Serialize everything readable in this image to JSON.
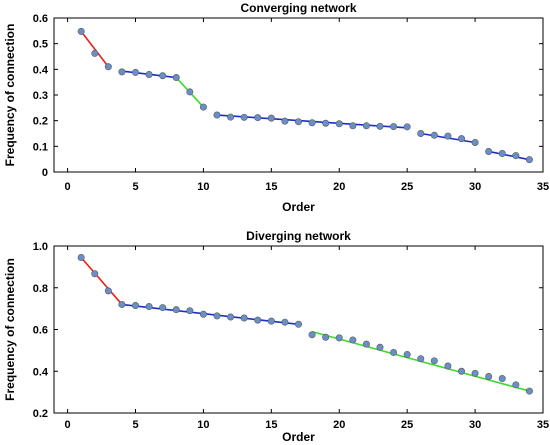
{
  "chart_data": [
    {
      "type": "scatter",
      "title": "Converging network",
      "xlabel": "Order",
      "ylabel": "Frequency of connection",
      "xlim": [
        -1,
        35
      ],
      "ylim": [
        0,
        0.6
      ],
      "xticks": [
        0,
        5,
        10,
        15,
        20,
        25,
        30,
        35
      ],
      "yticks": [
        0,
        0.1,
        0.2,
        0.3,
        0.4,
        0.5,
        0.6
      ],
      "ytick_labels": [
        "0",
        "0.1",
        "0.2",
        "0.3",
        "0.4",
        "0.5",
        "0.6"
      ],
      "point_color": "#6a8fc8",
      "points": [
        {
          "x": 1,
          "y": 0.548
        },
        {
          "x": 2,
          "y": 0.462
        },
        {
          "x": 3,
          "y": 0.41
        },
        {
          "x": 4,
          "y": 0.39
        },
        {
          "x": 5,
          "y": 0.388
        },
        {
          "x": 6,
          "y": 0.38
        },
        {
          "x": 7,
          "y": 0.375
        },
        {
          "x": 8,
          "y": 0.368
        },
        {
          "x": 9,
          "y": 0.312
        },
        {
          "x": 10,
          "y": 0.253
        },
        {
          "x": 11,
          "y": 0.222
        },
        {
          "x": 12,
          "y": 0.214
        },
        {
          "x": 13,
          "y": 0.213
        },
        {
          "x": 14,
          "y": 0.212
        },
        {
          "x": 15,
          "y": 0.21
        },
        {
          "x": 16,
          "y": 0.198
        },
        {
          "x": 17,
          "y": 0.196
        },
        {
          "x": 18,
          "y": 0.192
        },
        {
          "x": 19,
          "y": 0.19
        },
        {
          "x": 20,
          "y": 0.188
        },
        {
          "x": 21,
          "y": 0.18
        },
        {
          "x": 22,
          "y": 0.18
        },
        {
          "x": 23,
          "y": 0.178
        },
        {
          "x": 24,
          "y": 0.177
        },
        {
          "x": 25,
          "y": 0.176
        },
        {
          "x": 26,
          "y": 0.15
        },
        {
          "x": 27,
          "y": 0.143
        },
        {
          "x": 28,
          "y": 0.14
        },
        {
          "x": 29,
          "y": 0.13
        },
        {
          "x": 30,
          "y": 0.115
        },
        {
          "x": 31,
          "y": 0.08
        },
        {
          "x": 32,
          "y": 0.072
        },
        {
          "x": 33,
          "y": 0.064
        },
        {
          "x": 34,
          "y": 0.048
        }
      ],
      "fit_lines": [
        {
          "color": "#e8221a",
          "x": [
            1,
            3
          ],
          "y": [
            0.548,
            0.41
          ]
        },
        {
          "color": "#1a2ec8",
          "x": [
            4,
            8
          ],
          "y": [
            0.393,
            0.368
          ]
        },
        {
          "color": "#3adc2a",
          "x": [
            8,
            10
          ],
          "y": [
            0.368,
            0.253
          ]
        },
        {
          "color": "#1a2ec8",
          "x": [
            11,
            25
          ],
          "y": [
            0.222,
            0.172
          ]
        },
        {
          "color": "#1a2ec8",
          "x": [
            26,
            30
          ],
          "y": [
            0.15,
            0.115
          ]
        },
        {
          "color": "#1a2ec8",
          "x": [
            31,
            34
          ],
          "y": [
            0.08,
            0.048
          ]
        }
      ]
    },
    {
      "type": "scatter",
      "title": "Diverging network",
      "xlabel": "Order",
      "ylabel": "Frequency of connection",
      "xlim": [
        -1,
        35
      ],
      "ylim": [
        0.2,
        1.0
      ],
      "xticks": [
        0,
        5,
        10,
        15,
        20,
        25,
        30,
        35
      ],
      "yticks": [
        0.2,
        0.4,
        0.6,
        0.8,
        1.0
      ],
      "ytick_labels": [
        "0.2",
        "0.4",
        "0.6",
        "0.8",
        "1.0"
      ],
      "point_color": "#6a8fc8",
      "points": [
        {
          "x": 1,
          "y": 0.945
        },
        {
          "x": 2,
          "y": 0.867
        },
        {
          "x": 3,
          "y": 0.785
        },
        {
          "x": 4,
          "y": 0.72
        },
        {
          "x": 5,
          "y": 0.715
        },
        {
          "x": 6,
          "y": 0.71
        },
        {
          "x": 7,
          "y": 0.705
        },
        {
          "x": 8,
          "y": 0.695
        },
        {
          "x": 9,
          "y": 0.69
        },
        {
          "x": 10,
          "y": 0.673
        },
        {
          "x": 11,
          "y": 0.665
        },
        {
          "x": 12,
          "y": 0.66
        },
        {
          "x": 13,
          "y": 0.655
        },
        {
          "x": 14,
          "y": 0.645
        },
        {
          "x": 15,
          "y": 0.64
        },
        {
          "x": 16,
          "y": 0.635
        },
        {
          "x": 17,
          "y": 0.625
        },
        {
          "x": 18,
          "y": 0.575
        },
        {
          "x": 19,
          "y": 0.563
        },
        {
          "x": 20,
          "y": 0.56
        },
        {
          "x": 21,
          "y": 0.55
        },
        {
          "x": 22,
          "y": 0.53
        },
        {
          "x": 23,
          "y": 0.515
        },
        {
          "x": 24,
          "y": 0.49
        },
        {
          "x": 25,
          "y": 0.48
        },
        {
          "x": 26,
          "y": 0.46
        },
        {
          "x": 27,
          "y": 0.45
        },
        {
          "x": 28,
          "y": 0.425
        },
        {
          "x": 29,
          "y": 0.4
        },
        {
          "x": 30,
          "y": 0.39
        },
        {
          "x": 31,
          "y": 0.375
        },
        {
          "x": 32,
          "y": 0.365
        },
        {
          "x": 33,
          "y": 0.335
        },
        {
          "x": 34,
          "y": 0.305
        }
      ],
      "fit_lines": [
        {
          "color": "#e8221a",
          "x": [
            1,
            4
          ],
          "y": [
            0.945,
            0.72
          ]
        },
        {
          "color": "#1a2ec8",
          "x": [
            4,
            17
          ],
          "y": [
            0.72,
            0.625
          ]
        },
        {
          "color": "#3adc2a",
          "x": [
            18,
            34
          ],
          "y": [
            0.59,
            0.305
          ]
        }
      ]
    }
  ]
}
